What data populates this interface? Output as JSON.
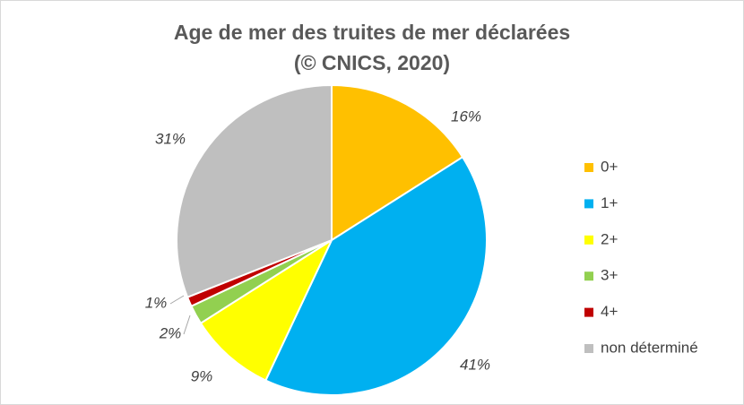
{
  "chart_data": {
    "type": "pie",
    "title": "Age de mer des truites de mer déclarées",
    "subtitle": "(© CNICS, 2020)",
    "categories": [
      "0+",
      "1+",
      "2+",
      "3+",
      "4+",
      "non déterminé"
    ],
    "values": [
      16,
      41,
      9,
      2,
      1,
      31
    ],
    "value_labels": [
      "16%",
      "41%",
      "9%",
      "2%",
      "1%",
      "31%"
    ],
    "colors": [
      "#ffc000",
      "#00b0f0",
      "#ffff00",
      "#92d050",
      "#c00000",
      "#bfbfbf"
    ],
    "legend": "right"
  }
}
